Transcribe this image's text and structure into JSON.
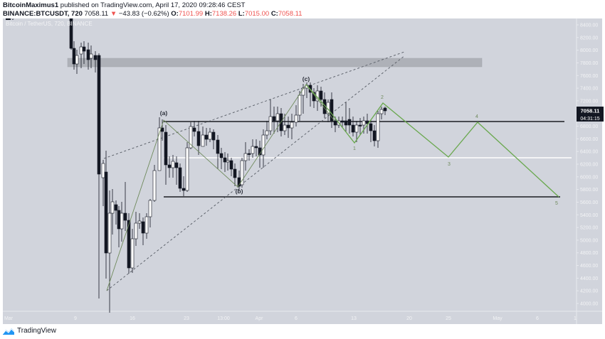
{
  "header": {
    "author": "BitcoinMaximus1",
    "published_text": "published on TradingView.com, April 17, 2020 09:28:46 CEST",
    "symbol": "BINANCE:BTCUSDT, 720",
    "last": "7058.11",
    "change": "−43.83 (−0.62%)",
    "o_label": "O:",
    "o": "7101.99",
    "h_label": "H:",
    "h": "7138.26",
    "l_label": "L:",
    "l": "7015.00",
    "c_label": "C:",
    "c": "7058.11"
  },
  "chart_overlay": {
    "pair_label": "Bitcoin / TetherUS, 720, BINANCE"
  },
  "price_tag": {
    "price": "7058.11",
    "countdown": "04:31:15"
  },
  "footer": {
    "brand": "TradingView"
  },
  "colors": {
    "background": "#d1d4dc",
    "candle_up": "#ffffff",
    "candle_down": "#131722",
    "wave_line": "#6aa84f",
    "abc_line": "#7a8a6a",
    "resistance_zone": "#a9abb2"
  },
  "chart_data": {
    "type": "candlestick",
    "title": "Bitcoin / TetherUS, 720, BINANCE",
    "xlabel": "",
    "ylabel": "",
    "ylim": [
      3900,
      8500
    ],
    "grid": false,
    "y_ticks": [
      "8400.00",
      "8200.00",
      "8000.00",
      "7800.00",
      "7600.00",
      "7400.00",
      "7200.00",
      "7000.00",
      "6800.00",
      "6600.00",
      "6400.00",
      "6200.00",
      "6000.00",
      "5800.00",
      "5600.00",
      "5400.00",
      "5200.00",
      "5000.00",
      "4800.00",
      "4600.00",
      "4400.00",
      "4200.00",
      "4000.00"
    ],
    "x_ticks": [
      "Mar",
      "9",
      "16",
      "23",
      "13:00",
      "Apr",
      "6",
      "13",
      "20",
      "25",
      "May",
      "6",
      "1"
    ],
    "annotations": {
      "abc_labels": [
        "(a)",
        "(b)",
        "(c)"
      ],
      "wave_labels": [
        "1",
        "2",
        "3",
        "4",
        "5"
      ],
      "horizontal_levels": [
        6950,
        6300,
        5680
      ],
      "resistance_zone": [
        7780,
        7900
      ],
      "abc_points": {
        "a": 6950,
        "b": 5880,
        "c": 7470
      },
      "projected_waves": {
        "1": 6560,
        "2": 7180,
        "3": 6300,
        "4": 6950,
        "5": 5680
      }
    },
    "series": [
      {
        "name": "BTCUSDT 12h",
        "last_close": 7058.11,
        "open": 7101.99,
        "high": 7138.26,
        "low": 7015.0
      }
    ]
  }
}
